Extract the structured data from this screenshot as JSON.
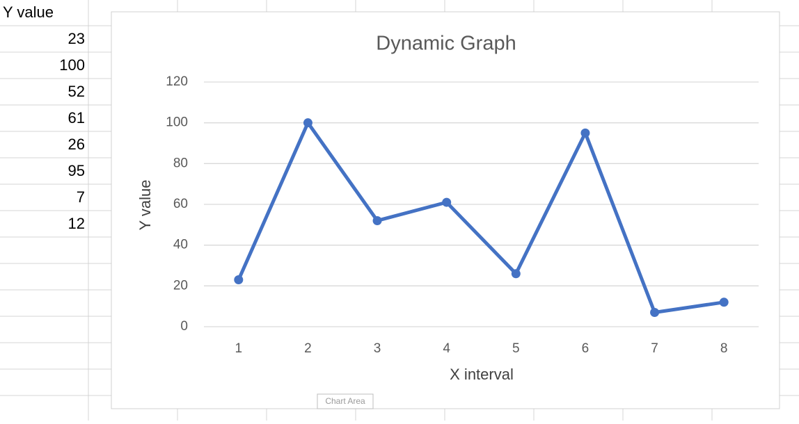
{
  "sheet": {
    "header": "Y value",
    "values": [
      23,
      100,
      52,
      61,
      26,
      95,
      7,
      12
    ]
  },
  "chart_data": {
    "type": "line",
    "title": "Dynamic Graph",
    "x_label": "X interval",
    "y_label": "Y value",
    "categories": [
      1,
      2,
      3,
      4,
      5,
      6,
      7,
      8
    ],
    "series": [
      {
        "name": "Y value",
        "color": "#4472c4",
        "values": [
          23,
          100,
          52,
          61,
          26,
          95,
          7,
          12
        ]
      }
    ],
    "ylim": [
      0,
      120
    ],
    "yticks": [
      0,
      20,
      40,
      60,
      80,
      100,
      120
    ],
    "grid": true
  },
  "tooltip": "Chart Area"
}
